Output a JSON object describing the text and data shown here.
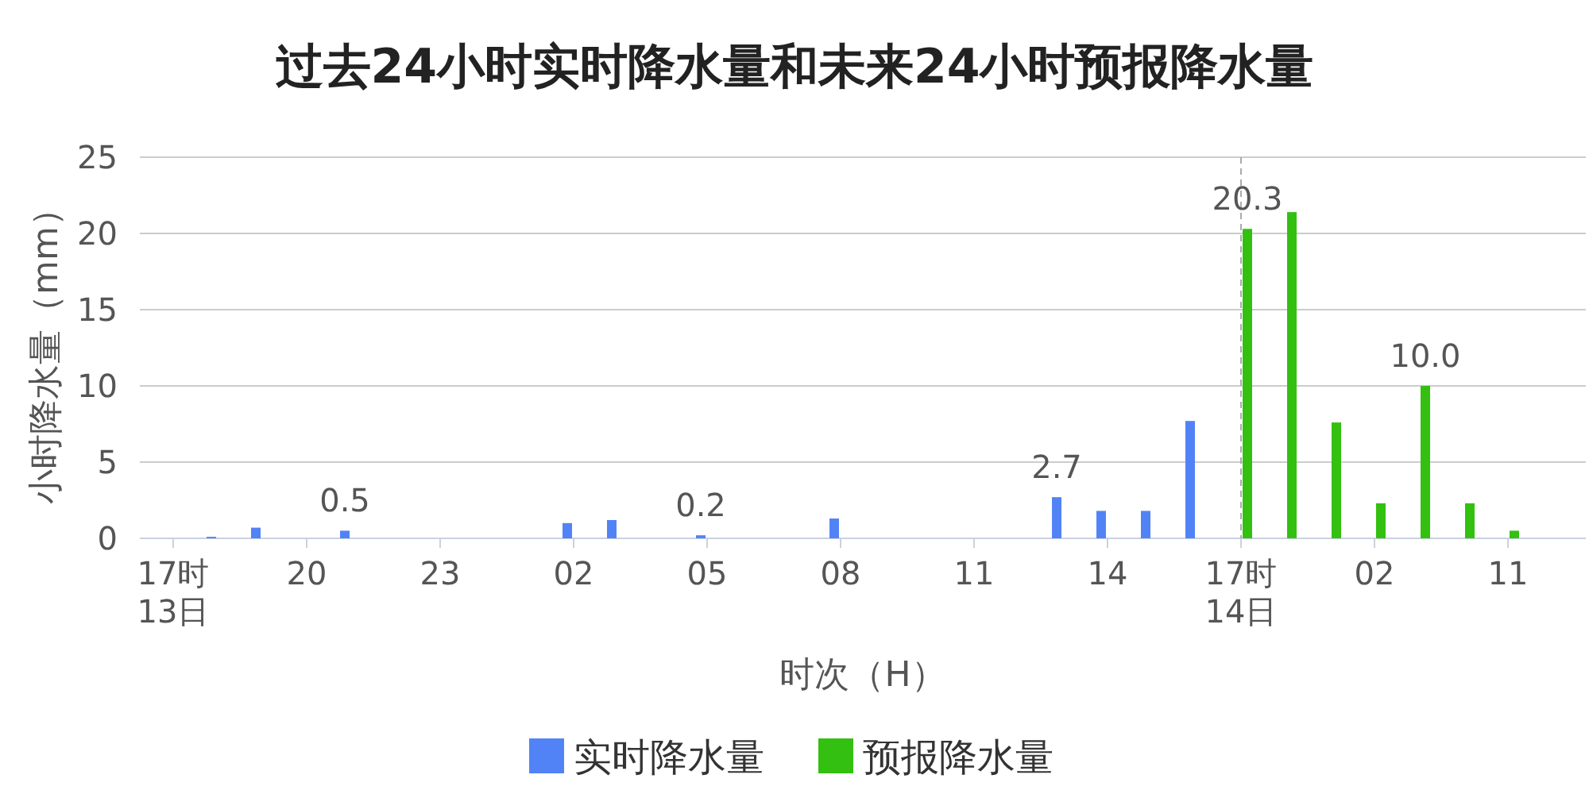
{
  "chart_data": {
    "type": "bar",
    "title": "过去24小时实时降水量和未来24小时预报降水量",
    "xlabel": "时次（H）",
    "ylabel": "小时降水量（mm）",
    "categories": [
      "17时\n13日",
      null,
      null,
      "20",
      null,
      null,
      "23",
      null,
      null,
      "02",
      null,
      null,
      "05",
      null,
      null,
      "08",
      null,
      null,
      "11",
      null,
      null,
      "14",
      null,
      null,
      "17时\n14日",
      null,
      null,
      "02",
      null,
      null,
      "11",
      null
    ],
    "series": [
      {
        "name": "实时降水量",
        "color": "#5283f6",
        "values": [
          null,
          0.1,
          0.7,
          null,
          0.5,
          null,
          null,
          null,
          null,
          1.0,
          1.2,
          null,
          0.2,
          null,
          null,
          1.3,
          null,
          null,
          null,
          null,
          2.7,
          1.8,
          1.8,
          7.7,
          null,
          null,
          null,
          null,
          null,
          null,
          null,
          null
        ],
        "value_labels": [
          null,
          null,
          null,
          null,
          "0.5",
          null,
          null,
          null,
          null,
          null,
          null,
          null,
          "0.2",
          null,
          null,
          null,
          null,
          null,
          null,
          null,
          "2.7",
          null,
          null,
          null,
          null,
          null,
          null,
          null,
          null,
          null,
          null,
          null
        ]
      },
      {
        "name": "预报降水量",
        "color": "#33c011",
        "values": [
          null,
          null,
          null,
          null,
          null,
          null,
          null,
          null,
          null,
          null,
          null,
          null,
          null,
          null,
          null,
          null,
          null,
          null,
          null,
          null,
          null,
          null,
          null,
          null,
          20.3,
          21.4,
          7.6,
          2.3,
          10.0,
          2.3,
          0.5,
          null
        ],
        "value_labels": [
          null,
          null,
          null,
          null,
          null,
          null,
          null,
          null,
          null,
          null,
          null,
          null,
          null,
          null,
          null,
          null,
          null,
          null,
          null,
          null,
          null,
          null,
          null,
          null,
          "20.3",
          null,
          null,
          null,
          "10.0",
          null,
          null,
          null
        ]
      }
    ],
    "ylim": [
      0,
      25
    ],
    "yticks": [
      0,
      5,
      10,
      15,
      20,
      25
    ],
    "grid": "y",
    "legend": "bottom",
    "ref_lines": [
      {
        "axis": "x",
        "value": "17时\n14日",
        "color": "#aaaaaa",
        "line_style": "dashed"
      }
    ]
  }
}
